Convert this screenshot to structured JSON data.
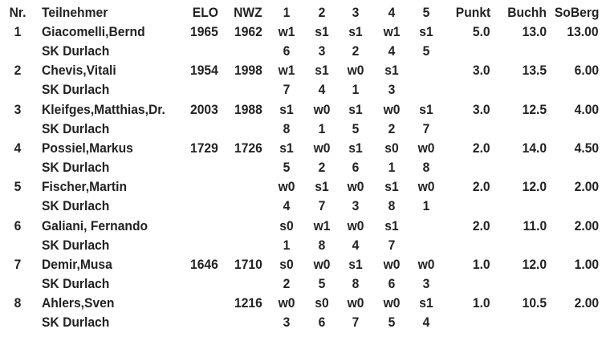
{
  "table": {
    "header": [
      "Nr.",
      "Teilnehmer",
      "ELO",
      "NWZ",
      "1",
      "2",
      "3",
      "4",
      "5",
      "Punkt",
      "Buchh",
      "SoBerg"
    ],
    "rows": [
      {
        "nr": "1",
        "name": "Giacomelli,Bernd",
        "elo": "1965",
        "nwz": "1962",
        "results": [
          "w1",
          "s1",
          "s1",
          "w1",
          "s1"
        ],
        "punkt": "5.0",
        "buchh": "13.0",
        "soberg": "13.00",
        "club": "SK Durlach",
        "opponents": [
          "6",
          "3",
          "2",
          "4",
          "5"
        ]
      },
      {
        "nr": "2",
        "name": "Chevis,Vitali",
        "elo": "1954",
        "nwz": "1998",
        "results": [
          "w1",
          "s1",
          "w0",
          "s1",
          null
        ],
        "punkt": "3.0",
        "buchh": "13.5",
        "soberg": "6.00",
        "club": "SK Durlach",
        "opponents": [
          "7",
          "4",
          "1",
          "3",
          null
        ]
      },
      {
        "nr": "3",
        "name": "Kleifges,Matthias,Dr.",
        "elo": "2003",
        "nwz": "1988",
        "results": [
          "s1",
          "w0",
          "s1",
          "w0",
          "s1"
        ],
        "punkt": "3.0",
        "buchh": "12.5",
        "soberg": "4.00",
        "club": "SK Durlach",
        "opponents": [
          "8",
          "1",
          "5",
          "2",
          "7"
        ]
      },
      {
        "nr": "4",
        "name": "Possiel,Markus",
        "elo": "1729",
        "nwz": "1726",
        "results": [
          "s1",
          "w0",
          "s1",
          "s0",
          "w0"
        ],
        "punkt": "2.0",
        "buchh": "14.0",
        "soberg": "4.50",
        "club": "SK Durlach",
        "opponents": [
          "5",
          "2",
          "6",
          "1",
          "8"
        ]
      },
      {
        "nr": "5",
        "name": "Fischer,Martin",
        "results": [
          "w0",
          "s1",
          "w0",
          "s1",
          "w0"
        ],
        "punkt": "2.0",
        "buchh": "12.0",
        "soberg": "2.00",
        "club": "SK Durlach",
        "opponents": [
          "4",
          "7",
          "3",
          "8",
          "1"
        ]
      },
      {
        "nr": "6",
        "name": "Galiani, Fernando",
        "results": [
          "s0",
          "w1",
          "w0",
          "s1",
          null
        ],
        "punkt": "2.0",
        "buchh": "11.0",
        "soberg": "2.00",
        "club": "SK Durlach",
        "opponents": [
          "1",
          "8",
          "4",
          "7",
          null
        ]
      },
      {
        "nr": "7",
        "name": "Demir,Musa",
        "elo": "1646",
        "nwz": "1710",
        "results": [
          "s0",
          "w0",
          "s1",
          "w0",
          "w0"
        ],
        "punkt": "1.0",
        "buchh": "12.0",
        "soberg": "1.00",
        "club": "SK Durlach",
        "opponents": [
          "2",
          "5",
          "8",
          "6",
          "3"
        ]
      },
      {
        "nr": "8",
        "name": "Ahlers,Sven",
        "nwz": "1216",
        "results": [
          "w0",
          "s0",
          "w0",
          "w0",
          "s1"
        ],
        "punkt": "1.0",
        "buchh": "10.5",
        "soberg": "2.00",
        "club": "SK Durlach",
        "opponents": [
          "3",
          "6",
          "7",
          "5",
          "4"
        ]
      }
    ]
  }
}
